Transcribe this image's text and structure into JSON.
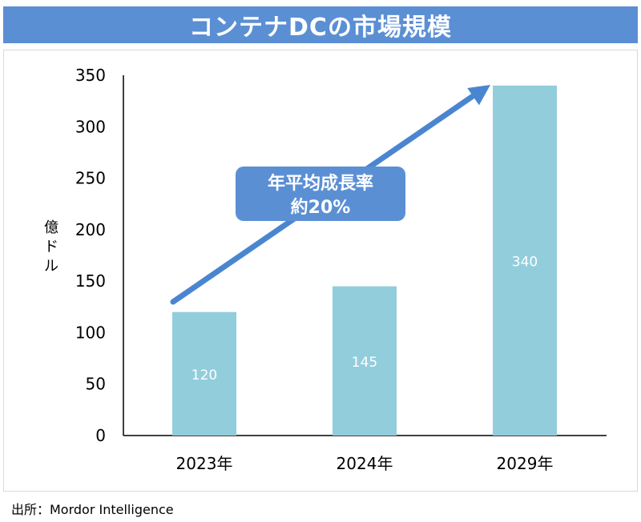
{
  "header": {
    "title": "コンテナDCの市場規模"
  },
  "source": "出所：Mordor Intelligence",
  "chart_data": {
    "type": "bar",
    "title": "コンテナDCの市場規模",
    "ylabel": "億ドル",
    "xlabel": "",
    "categories": [
      "2023年",
      "2024年",
      "2029年"
    ],
    "values": [
      120,
      145,
      340
    ],
    "data_labels": [
      "120",
      "145",
      "340"
    ],
    "y_ticks": [
      0,
      50,
      100,
      150,
      200,
      250,
      300,
      350
    ],
    "ylim": [
      0,
      350
    ],
    "grid": false,
    "legend": "none",
    "annotation": {
      "line1": "年平均成長率",
      "line2": "約20%"
    },
    "colors": {
      "bar": "#92cddc",
      "arrow": "#4a86d0",
      "annotation_bg": "#5b8fd4",
      "annotation_text": "#ffffff",
      "data_label": "#ffffff"
    }
  }
}
